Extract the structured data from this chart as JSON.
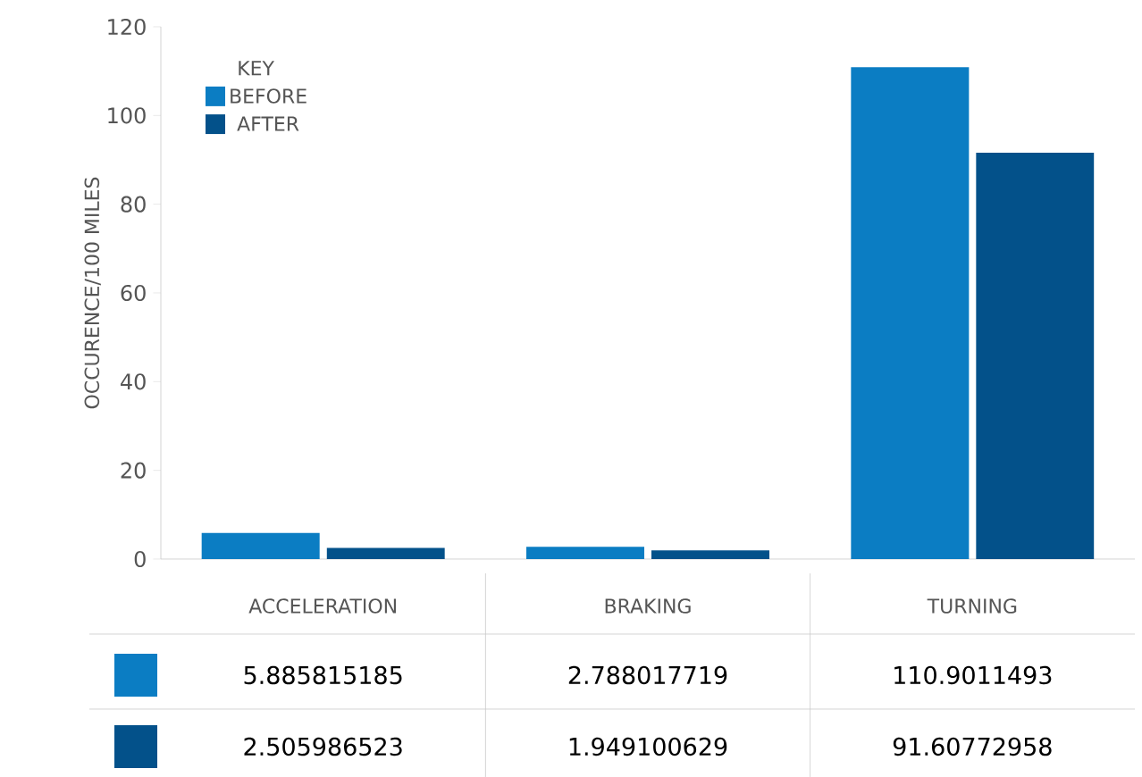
{
  "chart_data": {
    "type": "bar",
    "ylabel": "OCCURENCE/100 MILES",
    "categories": [
      "ACCELERATION",
      "BRAKING",
      "TURNING"
    ],
    "series": [
      {
        "name": "BEFORE",
        "color": "#0b7dc3",
        "values": [
          5.885815185,
          2.788017719,
          110.9011493
        ]
      },
      {
        "name": "AFTER",
        "color": "#03518a",
        "values": [
          2.505986523,
          1.949100629,
          91.60772958
        ]
      }
    ],
    "legend_title": "KEY",
    "legend": "top left",
    "data_labels": true,
    "ylim": [
      0,
      120
    ],
    "yticks": [
      0,
      20,
      40,
      60,
      80,
      100,
      120
    ],
    "grid": false
  }
}
